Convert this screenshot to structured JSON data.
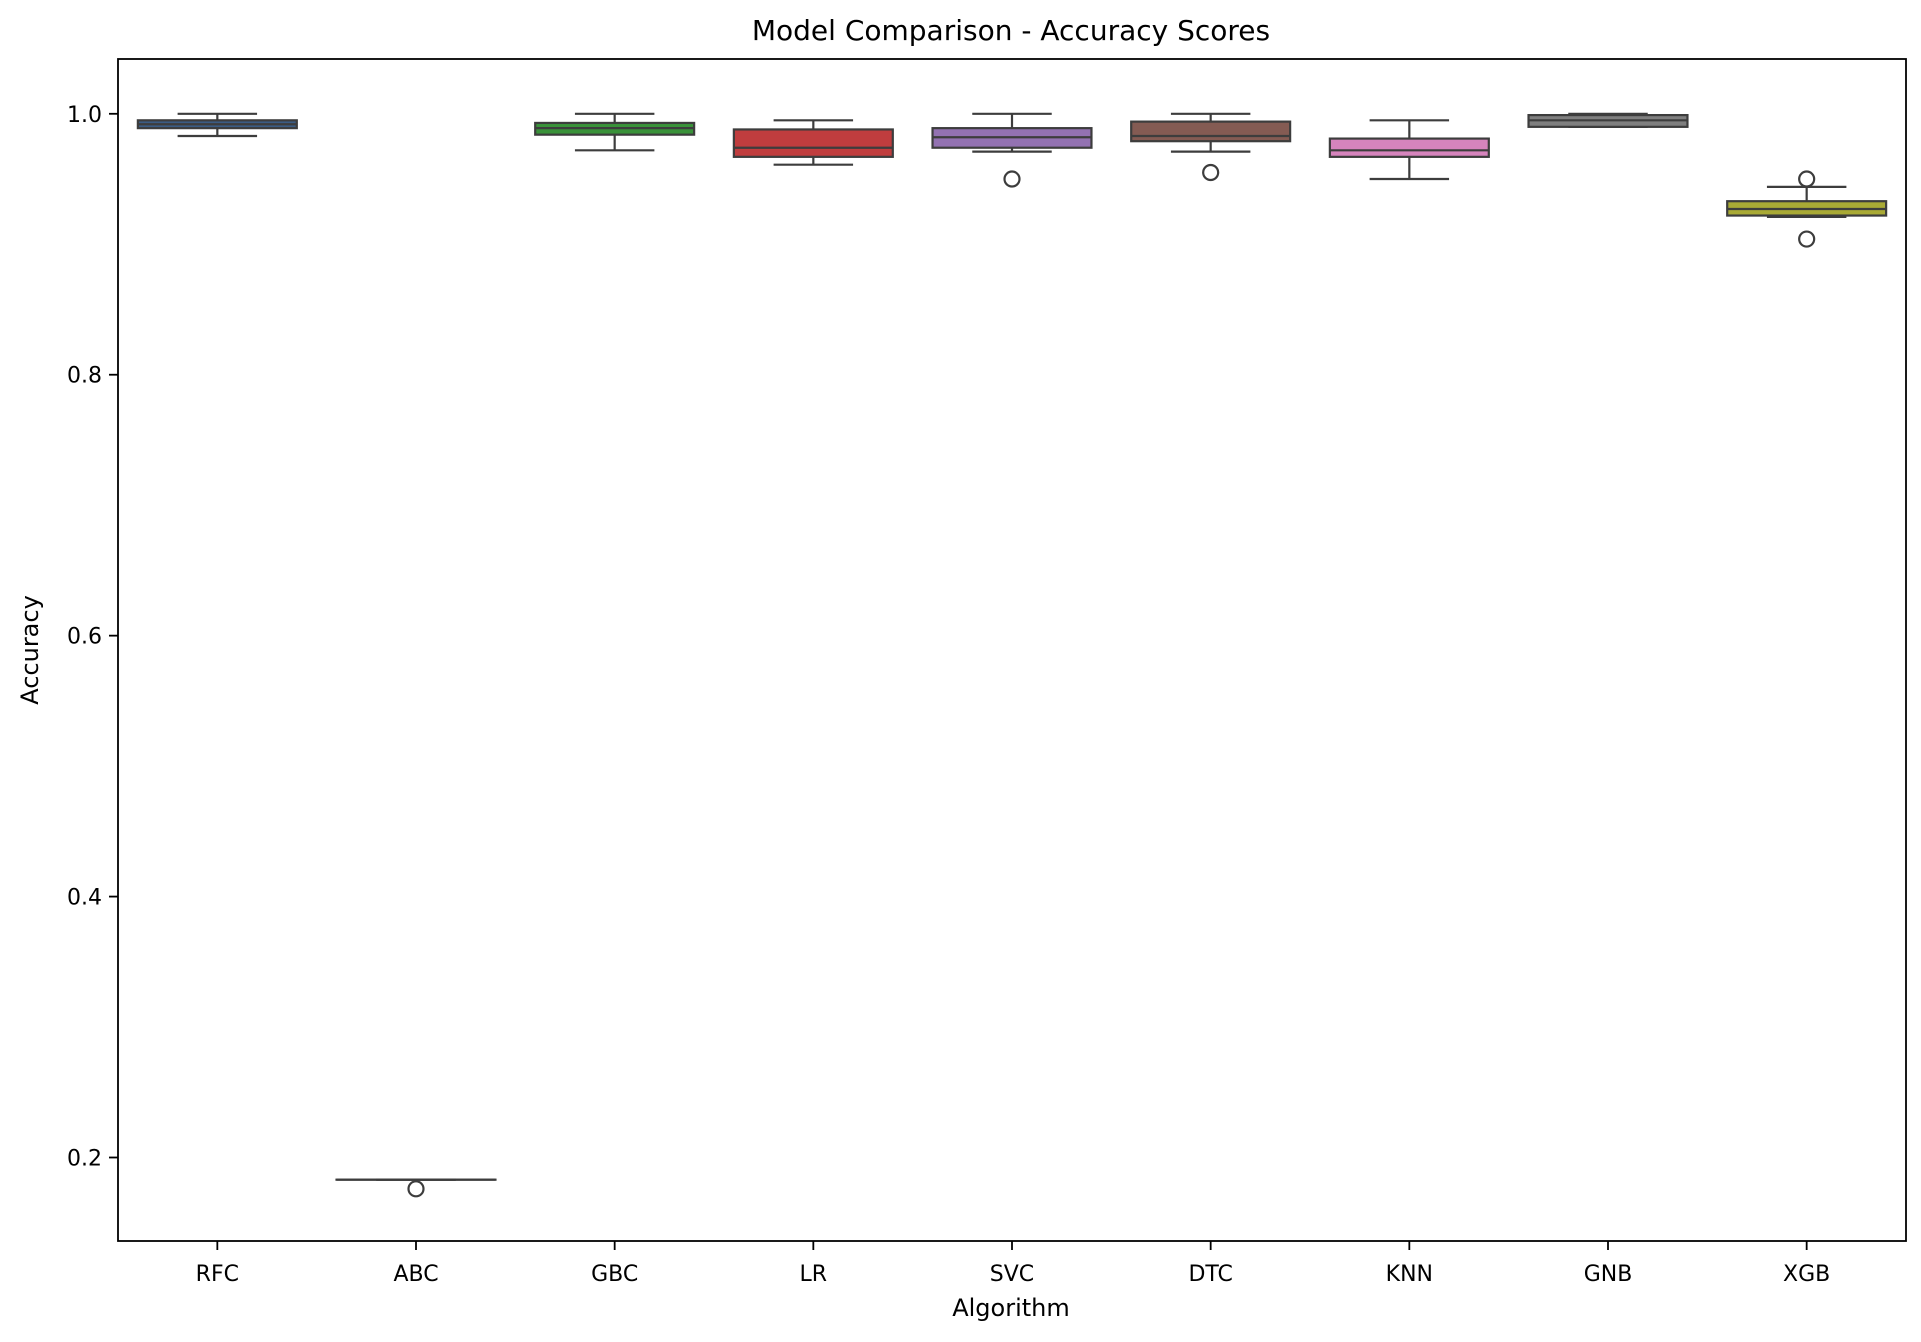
{
  "chart_data": {
    "type": "box",
    "title": "Model Comparison - Accuracy Scores",
    "xlabel": "Algorithm",
    "ylabel": "Accuracy",
    "ylim": [
      0.136,
      1.042
    ],
    "yticks": [
      "0.2",
      "0.4",
      "0.6",
      "0.8",
      "1.0"
    ],
    "grid": false,
    "categories": [
      "RFC",
      "ABC",
      "GBC",
      "LR",
      "SVC",
      "DTC",
      "KNN",
      "GNB",
      "XGB"
    ],
    "series": [
      {
        "category": "RFC",
        "color": "#3b5c84",
        "whisker_low": 0.983,
        "q1": 0.989,
        "median": 0.992,
        "q3": 0.995,
        "whisker_high": 1.0,
        "outliers": []
      },
      {
        "category": "ABC",
        "color": "#4c72b0",
        "whisker_low": 0.183,
        "q1": 0.183,
        "median": 0.183,
        "q3": 0.183,
        "whisker_high": 0.183,
        "outliers": [
          0.176
        ]
      },
      {
        "category": "GBC",
        "color": "#3a923a",
        "whisker_low": 0.972,
        "q1": 0.984,
        "median": 0.989,
        "q3": 0.993,
        "whisker_high": 1.0,
        "outliers": []
      },
      {
        "category": "LR",
        "color": "#c03d3e",
        "whisker_low": 0.961,
        "q1": 0.967,
        "median": 0.974,
        "q3": 0.988,
        "whisker_high": 0.995,
        "outliers": []
      },
      {
        "category": "SVC",
        "color": "#9372b2",
        "whisker_low": 0.971,
        "q1": 0.974,
        "median": 0.982,
        "q3": 0.989,
        "whisker_high": 1.0,
        "outliers": [
          0.95
        ]
      },
      {
        "category": "DTC",
        "color": "#845b53",
        "whisker_low": 0.971,
        "q1": 0.979,
        "median": 0.983,
        "q3": 0.994,
        "whisker_high": 1.0,
        "outliers": [
          0.955
        ]
      },
      {
        "category": "KNN",
        "color": "#d684bd",
        "whisker_low": 0.95,
        "q1": 0.967,
        "median": 0.972,
        "q3": 0.981,
        "whisker_high": 0.995,
        "outliers": []
      },
      {
        "category": "GNB",
        "color": "#7f7f7f",
        "whisker_low": 0.99,
        "q1": 0.99,
        "median": 0.995,
        "q3": 0.999,
        "whisker_high": 1.0,
        "outliers": []
      },
      {
        "category": "XGB",
        "color": "#a9aa35",
        "whisker_low": 0.921,
        "q1": 0.922,
        "median": 0.927,
        "q3": 0.933,
        "whisker_high": 0.944,
        "outliers": [
          0.95,
          0.904
        ]
      }
    ]
  }
}
